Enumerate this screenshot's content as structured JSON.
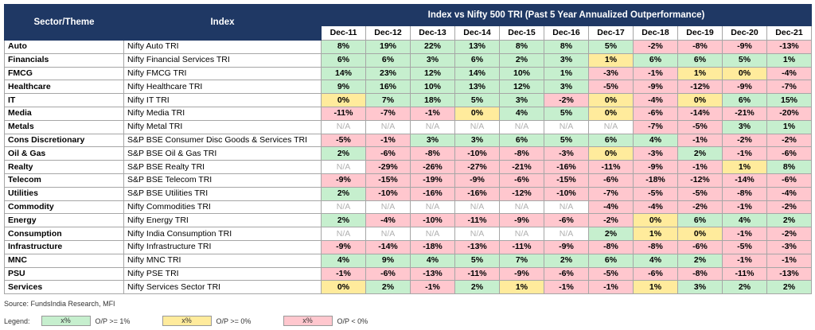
{
  "table": {
    "group_title": "Index vs Nifty 500 TRI (Past 5 Year Annualized Outperformance)",
    "header": [
      "Sector/Theme",
      "Index"
    ],
    "columns": [
      "Dec-11",
      "Dec-12",
      "Dec-13",
      "Dec-14",
      "Dec-15",
      "Dec-16",
      "Dec-17",
      "Dec-18",
      "Dec-19",
      "Dec-20",
      "Dec-21"
    ],
    "rows": [
      {
        "sector": "Auto",
        "index": "Nifty Auto TRI",
        "cells": [
          "8%",
          "19%",
          "22%",
          "13%",
          "8%",
          "8%",
          "5%",
          "-2%",
          "-8%",
          "-9%",
          "-13%"
        ],
        "shade": [
          0,
          0,
          0,
          0,
          0,
          0,
          0,
          2,
          2,
          2,
          2
        ]
      },
      {
        "sector": "Financials",
        "index": "Nifty Financial Services TRI",
        "cells": [
          "6%",
          "6%",
          "3%",
          "6%",
          "2%",
          "3%",
          "1%",
          "6%",
          "6%",
          "5%",
          "1%"
        ],
        "shade": [
          0,
          0,
          0,
          0,
          0,
          0,
          1,
          0,
          0,
          0,
          0
        ]
      },
      {
        "sector": "FMCG",
        "index": "Nifty FMCG TRI",
        "cells": [
          "14%",
          "23%",
          "12%",
          "14%",
          "10%",
          "1%",
          "-3%",
          "-1%",
          "1%",
          "0%",
          "-4%"
        ],
        "shade": [
          0,
          0,
          0,
          0,
          0,
          0,
          2,
          2,
          1,
          1,
          2
        ]
      },
      {
        "sector": "Healthcare",
        "index": "Nifty Healthcare TRI",
        "cells": [
          "9%",
          "16%",
          "10%",
          "13%",
          "12%",
          "3%",
          "-5%",
          "-9%",
          "-12%",
          "-9%",
          "-7%"
        ],
        "shade": [
          0,
          0,
          0,
          0,
          0,
          0,
          2,
          2,
          2,
          2,
          2
        ]
      },
      {
        "sector": "IT",
        "index": "Nifty IT TRI",
        "cells": [
          "0%",
          "7%",
          "18%",
          "5%",
          "3%",
          "-2%",
          "0%",
          "-4%",
          "0%",
          "6%",
          "15%"
        ],
        "shade": [
          1,
          0,
          0,
          0,
          0,
          2,
          1,
          2,
          1,
          0,
          0
        ]
      },
      {
        "sector": "Media",
        "index": "Nifty Media TRI",
        "cells": [
          "-11%",
          "-7%",
          "-1%",
          "0%",
          "4%",
          "5%",
          "0%",
          "-6%",
          "-14%",
          "-21%",
          "-20%"
        ],
        "shade": [
          2,
          2,
          2,
          1,
          0,
          0,
          1,
          2,
          2,
          2,
          2
        ]
      },
      {
        "sector": "Metals",
        "index": "Nifty Metal TRI",
        "cells": [
          "N/A",
          "N/A",
          "N/A",
          "N/A",
          "N/A",
          "N/A",
          "N/A",
          "-7%",
          "-5%",
          "3%",
          "1%"
        ],
        "shade": [
          null,
          null,
          null,
          null,
          null,
          null,
          null,
          2,
          2,
          0,
          0
        ]
      },
      {
        "sector": "Cons Discretionary",
        "index": "S&P BSE Consumer Disc Goods & Services TRI",
        "cells": [
          "-5%",
          "-1%",
          "3%",
          "3%",
          "6%",
          "5%",
          "6%",
          "4%",
          "-1%",
          "-2%",
          "-2%"
        ],
        "shade": [
          2,
          2,
          0,
          0,
          0,
          0,
          0,
          0,
          2,
          2,
          2
        ]
      },
      {
        "sector": "Oil & Gas",
        "index": "S&P BSE Oil & Gas TRI",
        "cells": [
          "2%",
          "-6%",
          "-8%",
          "-10%",
          "-8%",
          "-3%",
          "0%",
          "-3%",
          "2%",
          "-1%",
          "-6%"
        ],
        "shade": [
          0,
          2,
          2,
          2,
          2,
          2,
          1,
          2,
          0,
          2,
          2
        ]
      },
      {
        "sector": "Realty",
        "index": "S&P BSE Realty TRI",
        "cells": [
          "N/A",
          "-29%",
          "-26%",
          "-27%",
          "-21%",
          "-16%",
          "-11%",
          "-9%",
          "-1%",
          "1%",
          "8%"
        ],
        "shade": [
          null,
          2,
          2,
          2,
          2,
          2,
          2,
          2,
          2,
          1,
          0
        ]
      },
      {
        "sector": "Telecom",
        "index": "S&P BSE Telecom TRI",
        "cells": [
          "-9%",
          "-15%",
          "-19%",
          "-9%",
          "-6%",
          "-15%",
          "-6%",
          "-18%",
          "-12%",
          "-14%",
          "-6%"
        ],
        "shade": [
          2,
          2,
          2,
          2,
          2,
          2,
          2,
          2,
          2,
          2,
          2
        ]
      },
      {
        "sector": "Utilities",
        "index": "S&P BSE Utilities TRI",
        "cells": [
          "2%",
          "-10%",
          "-16%",
          "-16%",
          "-12%",
          "-10%",
          "-7%",
          "-5%",
          "-5%",
          "-8%",
          "-4%"
        ],
        "shade": [
          0,
          2,
          2,
          2,
          2,
          2,
          2,
          2,
          2,
          2,
          2
        ]
      },
      {
        "sector": "Commodity",
        "index": "Nifty Commodities TRI",
        "cells": [
          "N/A",
          "N/A",
          "N/A",
          "N/A",
          "N/A",
          "N/A",
          "-4%",
          "-4%",
          "-2%",
          "-1%",
          "-2%"
        ],
        "shade": [
          null,
          null,
          null,
          null,
          null,
          null,
          2,
          2,
          2,
          2,
          2
        ]
      },
      {
        "sector": "Energy",
        "index": "Nifty Energy TRI",
        "cells": [
          "2%",
          "-4%",
          "-10%",
          "-11%",
          "-9%",
          "-6%",
          "-2%",
          "0%",
          "6%",
          "4%",
          "2%"
        ],
        "shade": [
          0,
          2,
          2,
          2,
          2,
          2,
          2,
          1,
          0,
          0,
          0
        ]
      },
      {
        "sector": "Consumption",
        "index": "Nifty India Consumption TRI",
        "cells": [
          "N/A",
          "N/A",
          "N/A",
          "N/A",
          "N/A",
          "N/A",
          "2%",
          "1%",
          "0%",
          "-1%",
          "-2%"
        ],
        "shade": [
          null,
          null,
          null,
          null,
          null,
          null,
          0,
          1,
          1,
          2,
          2
        ]
      },
      {
        "sector": "Infrastructure",
        "index": "Nifty Infrastructure TRI",
        "cells": [
          "-9%",
          "-14%",
          "-18%",
          "-13%",
          "-11%",
          "-9%",
          "-8%",
          "-8%",
          "-6%",
          "-5%",
          "-3%"
        ],
        "shade": [
          2,
          2,
          2,
          2,
          2,
          2,
          2,
          2,
          2,
          2,
          2
        ]
      },
      {
        "sector": "MNC",
        "index": "Nifty MNC TRI",
        "cells": [
          "4%",
          "9%",
          "4%",
          "5%",
          "7%",
          "2%",
          "6%",
          "4%",
          "2%",
          "-1%",
          "-1%"
        ],
        "shade": [
          0,
          0,
          0,
          0,
          0,
          0,
          0,
          0,
          0,
          2,
          2
        ]
      },
      {
        "sector": "PSU",
        "index": "Nifty PSE TRI",
        "cells": [
          "-1%",
          "-6%",
          "-13%",
          "-11%",
          "-9%",
          "-6%",
          "-5%",
          "-6%",
          "-8%",
          "-11%",
          "-13%"
        ],
        "shade": [
          2,
          2,
          2,
          2,
          2,
          2,
          2,
          2,
          2,
          2,
          2
        ]
      },
      {
        "sector": "Services",
        "index": "Nifty Services Sector TRI",
        "cells": [
          "0%",
          "2%",
          "-1%",
          "2%",
          "1%",
          "-1%",
          "-1%",
          "1%",
          "3%",
          "2%",
          "2%"
        ],
        "shade": [
          1,
          0,
          2,
          0,
          1,
          2,
          2,
          1,
          0,
          0,
          0
        ]
      }
    ]
  },
  "source": "Source: FundsIndia Research, MFI",
  "legend": {
    "title": "Legend:",
    "items": [
      {
        "swatch": "x%",
        "label": "O/P >= 1%",
        "color": "#c6efce"
      },
      {
        "swatch": "x%",
        "label": "O/P >= 0%",
        "color": "#ffeb9c"
      },
      {
        "swatch": "x%",
        "label": "O/P < 0%",
        "color": "#ffc7ce"
      }
    ]
  }
}
